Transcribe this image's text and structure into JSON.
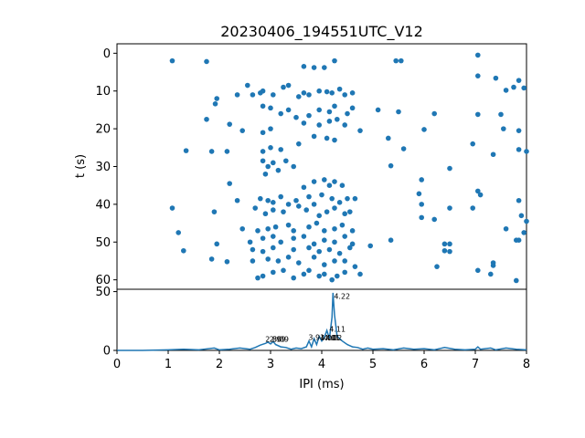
{
  "figure": {
    "title": "20230406_194551UTC_V12"
  },
  "chart_data": [
    {
      "type": "scatter",
      "title": "20230406_194551UTC_V12",
      "xlabel": "",
      "ylabel": "t (s)",
      "xlim": [
        0,
        8
      ],
      "ylim": [
        62.5,
        -2.5
      ],
      "y_inverted": true,
      "yticks": [
        0,
        10,
        20,
        30,
        40,
        50,
        60
      ],
      "color": "#1f77b4",
      "points": [
        [
          1.08,
          2
        ],
        [
          1.75,
          2.2
        ],
        [
          3.65,
          3.5
        ],
        [
          3.85,
          3.8
        ],
        [
          4.05,
          3.8
        ],
        [
          4.25,
          2
        ],
        [
          5.45,
          2
        ],
        [
          5.55,
          2
        ],
        [
          7.05,
          0.5
        ],
        [
          7.05,
          6
        ],
        [
          7.4,
          6.6
        ],
        [
          7.85,
          7.2
        ],
        [
          7.6,
          9.8
        ],
        [
          7.75,
          9
        ],
        [
          2.55,
          8.5
        ],
        [
          2.65,
          11
        ],
        [
          2.8,
          10.5
        ],
        [
          2.85,
          10
        ],
        [
          3.05,
          11
        ],
        [
          3.25,
          9
        ],
        [
          3.35,
          8.5
        ],
        [
          3.55,
          11.5
        ],
        [
          3.65,
          10.5
        ],
        [
          3.75,
          11
        ],
        [
          3.95,
          10
        ],
        [
          4.1,
          10.2
        ],
        [
          4.2,
          10.5
        ],
        [
          4.35,
          9.5
        ],
        [
          4.45,
          11
        ],
        [
          4.6,
          10.5
        ],
        [
          1.95,
          12
        ],
        [
          1.92,
          13.4
        ],
        [
          2.35,
          11
        ],
        [
          2.85,
          14
        ],
        [
          3.0,
          14.5
        ],
        [
          3.2,
          16
        ],
        [
          3.35,
          15
        ],
        [
          3.5,
          17
        ],
        [
          3.75,
          16.5
        ],
        [
          3.95,
          15
        ],
        [
          4.15,
          15.5
        ],
        [
          4.25,
          14
        ],
        [
          4.5,
          16
        ],
        [
          4.6,
          14.5
        ],
        [
          5.1,
          15
        ],
        [
          5.5,
          15.5
        ],
        [
          6.2,
          16
        ],
        [
          7.05,
          16.2
        ],
        [
          7.5,
          16.2
        ],
        [
          7.95,
          9.2
        ],
        [
          1.75,
          17.5
        ],
        [
          2.2,
          18.8
        ],
        [
          3.65,
          18.5
        ],
        [
          3.95,
          19
        ],
        [
          4.15,
          18
        ],
        [
          4.3,
          17.5
        ],
        [
          4.45,
          19
        ],
        [
          4.75,
          20.5
        ],
        [
          6.0,
          20.2
        ],
        [
          7.55,
          20
        ],
        [
          7.85,
          20.5
        ],
        [
          2.45,
          20.5
        ],
        [
          2.85,
          21
        ],
        [
          3.0,
          20
        ],
        [
          1.35,
          25.8
        ],
        [
          1.85,
          26
        ],
        [
          2.15,
          26
        ],
        [
          2.85,
          26
        ],
        [
          3.0,
          25
        ],
        [
          3.2,
          25.5
        ],
        [
          3.55,
          24
        ],
        [
          3.85,
          22
        ],
        [
          4.1,
          22.5
        ],
        [
          4.25,
          23
        ],
        [
          5.3,
          22.5
        ],
        [
          5.6,
          25.3
        ],
        [
          6.95,
          24
        ],
        [
          7.35,
          26.8
        ],
        [
          7.85,
          25.5
        ],
        [
          8.0,
          26
        ],
        [
          2.85,
          28.5
        ],
        [
          2.95,
          30
        ],
        [
          3.15,
          31
        ],
        [
          3.3,
          28.5
        ],
        [
          3.45,
          30
        ],
        [
          2.9,
          32
        ],
        [
          3.05,
          29
        ],
        [
          5.35,
          29.8
        ],
        [
          6.5,
          30.5
        ],
        [
          2.2,
          34.5
        ],
        [
          3.65,
          35.5
        ],
        [
          3.85,
          34
        ],
        [
          4.05,
          33.5
        ],
        [
          4.15,
          35
        ],
        [
          4.25,
          34
        ],
        [
          4.4,
          35
        ],
        [
          5.95,
          33.5
        ],
        [
          2.35,
          39
        ],
        [
          2.8,
          38.5
        ],
        [
          2.95,
          39
        ],
        [
          3.05,
          39.5
        ],
        [
          3.2,
          38
        ],
        [
          3.35,
          40
        ],
        [
          3.5,
          39
        ],
        [
          3.75,
          38
        ],
        [
          3.85,
          40
        ],
        [
          4.0,
          37.5
        ],
        [
          4.2,
          38.5
        ],
        [
          4.35,
          39.5
        ],
        [
          4.5,
          38.5
        ],
        [
          4.65,
          38.5
        ],
        [
          5.9,
          37.2
        ],
        [
          7.05,
          36.5
        ],
        [
          7.1,
          37.5
        ],
        [
          1.08,
          41
        ],
        [
          1.9,
          42
        ],
        [
          2.7,
          41
        ],
        [
          2.9,
          42.5
        ],
        [
          3.05,
          41.5
        ],
        [
          3.25,
          42
        ],
        [
          3.55,
          40.5
        ],
        [
          3.7,
          41.5
        ],
        [
          3.95,
          43
        ],
        [
          4.1,
          42
        ],
        [
          4.25,
          41
        ],
        [
          4.45,
          42.5
        ],
        [
          4.55,
          42
        ],
        [
          5.95,
          40
        ],
        [
          6.2,
          44
        ],
        [
          6.5,
          41
        ],
        [
          6.95,
          41
        ],
        [
          7.85,
          39
        ],
        [
          7.9,
          43
        ],
        [
          8.0,
          44.5
        ],
        [
          2.45,
          46.5
        ],
        [
          2.75,
          47
        ],
        [
          2.95,
          46.5
        ],
        [
          3.1,
          46
        ],
        [
          3.35,
          45.5
        ],
        [
          3.45,
          47
        ],
        [
          3.75,
          46
        ],
        [
          3.9,
          45
        ],
        [
          4.05,
          47
        ],
        [
          4.25,
          46.5
        ],
        [
          4.4,
          45.5
        ],
        [
          4.6,
          47
        ],
        [
          5.95,
          43.5
        ],
        [
          7.6,
          46.5
        ],
        [
          7.95,
          47.5
        ],
        [
          1.2,
          47.5
        ],
        [
          2.6,
          50
        ],
        [
          2.85,
          49
        ],
        [
          3.05,
          48.5
        ],
        [
          3.2,
          50
        ],
        [
          3.45,
          49
        ],
        [
          3.65,
          48.5
        ],
        [
          3.85,
          50.5
        ],
        [
          4.05,
          49.5
        ],
        [
          4.25,
          50
        ],
        [
          4.45,
          48.5
        ],
        [
          4.6,
          50.5
        ],
        [
          5.35,
          49.5
        ],
        [
          6.4,
          50.5
        ],
        [
          6.5,
          50.5
        ],
        [
          7.8,
          49.5
        ],
        [
          7.85,
          49.5
        ],
        [
          1.3,
          52.3
        ],
        [
          1.95,
          50.5
        ],
        [
          2.65,
          52
        ],
        [
          2.85,
          52.5
        ],
        [
          3.05,
          51.5
        ],
        [
          3.45,
          52
        ],
        [
          3.75,
          51.5
        ],
        [
          3.95,
          52.5
        ],
        [
          4.15,
          52
        ],
        [
          4.35,
          53
        ],
        [
          4.55,
          51.5
        ],
        [
          4.95,
          51
        ],
        [
          6.4,
          52.3
        ],
        [
          6.5,
          52.5
        ],
        [
          1.85,
          54.5
        ],
        [
          2.15,
          55.2
        ],
        [
          2.65,
          55
        ],
        [
          2.95,
          54.5
        ],
        [
          3.15,
          55
        ],
        [
          3.35,
          54
        ],
        [
          3.55,
          55.5
        ],
        [
          3.85,
          54
        ],
        [
          4.05,
          56
        ],
        [
          4.25,
          55
        ],
        [
          4.45,
          55
        ],
        [
          4.65,
          56.5
        ],
        [
          6.25,
          56.5
        ],
        [
          7.05,
          57.5
        ],
        [
          7.35,
          55.5
        ],
        [
          7.35,
          56.2
        ],
        [
          2.75,
          59.5
        ],
        [
          2.85,
          59
        ],
        [
          3.05,
          58
        ],
        [
          3.25,
          57.5
        ],
        [
          3.45,
          59.5
        ],
        [
          3.65,
          58.5
        ],
        [
          3.75,
          57.5
        ],
        [
          3.95,
          59
        ],
        [
          4.05,
          58.5
        ],
        [
          4.2,
          60
        ],
        [
          4.3,
          59
        ],
        [
          4.45,
          58
        ],
        [
          4.75,
          58.5
        ],
        [
          7.3,
          58.5
        ],
        [
          7.8,
          60.2
        ]
      ]
    },
    {
      "type": "line",
      "title": "",
      "xlabel": "IPI (ms)",
      "ylabel": "",
      "xlim": [
        0,
        8
      ],
      "ylim": [
        0,
        52
      ],
      "xticks": [
        0,
        1,
        2,
        3,
        4,
        5,
        6,
        7,
        8
      ],
      "yticks": [
        0,
        50
      ],
      "color": "#1f77b4",
      "x": [
        0,
        0.5,
        1.0,
        1.3,
        1.6,
        1.9,
        2.0,
        2.2,
        2.4,
        2.6,
        2.7,
        2.8,
        2.9,
        2.95,
        3.0,
        3.05,
        3.1,
        3.2,
        3.3,
        3.4,
        3.5,
        3.6,
        3.7,
        3.75,
        3.8,
        3.85,
        3.9,
        3.95,
        4.0,
        4.05,
        4.1,
        4.15,
        4.2,
        4.22,
        4.25,
        4.3,
        4.4,
        4.5,
        4.6,
        4.7,
        4.8,
        4.9,
        5.0,
        5.2,
        5.4,
        5.6,
        5.8,
        6.0,
        6.2,
        6.4,
        6.6,
        6.8,
        7.0,
        7.05,
        7.1,
        7.3,
        7.4,
        7.6,
        7.8,
        8.0
      ],
      "y": [
        0,
        0,
        0.5,
        1.0,
        0.5,
        2.0,
        0.5,
        1.0,
        2.0,
        1.0,
        2.5,
        4.5,
        6.0,
        7.0,
        5.5,
        7.5,
        5.0,
        3.0,
        2.5,
        1.0,
        2.0,
        1.5,
        3.0,
        8.0,
        3.0,
        10.0,
        5.0,
        12.0,
        8.0,
        11.0,
        17.0,
        10.0,
        28.0,
        49.0,
        30.0,
        12.0,
        8.0,
        5.0,
        3.0,
        2.5,
        1.0,
        2.0,
        1.0,
        1.5,
        0.5,
        2.0,
        1.0,
        1.5,
        0.5,
        2.5,
        1.0,
        0.5,
        1.0,
        3.0,
        1.0,
        2.0,
        0.5,
        2.0,
        1.0,
        0.5
      ],
      "annotations": [
        {
          "x": 2.88,
          "y": 7.5,
          "text": "2.86"
        },
        {
          "x": 2.96,
          "y": 7.5,
          "text": "2.99"
        },
        {
          "x": 3.02,
          "y": 7.5,
          "text": "3.09"
        },
        {
          "x": 3.72,
          "y": 9.0,
          "text": "3.91"
        },
        {
          "x": 3.95,
          "y": 8.5,
          "text": "4.00"
        },
        {
          "x": 4.02,
          "y": 8.5,
          "text": "4.01"
        },
        {
          "x": 4.06,
          "y": 8.5,
          "text": "4.02"
        },
        {
          "x": 4.13,
          "y": 16.0,
          "text": "4.11"
        },
        {
          "x": 4.22,
          "y": 44.0,
          "text": "4.22"
        }
      ]
    }
  ]
}
